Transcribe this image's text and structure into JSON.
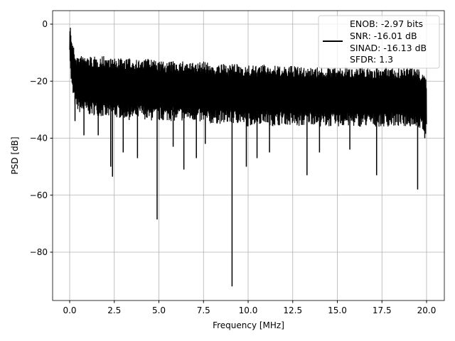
{
  "chart_data": {
    "type": "line",
    "xlabel": "Frequency [MHz]",
    "ylabel": "PSD [dB]",
    "xlim": [
      -1,
      21
    ],
    "ylim": [
      -97,
      4.7
    ],
    "grid": true,
    "xticks": [
      0,
      2.5,
      5,
      7.5,
      10,
      12.5,
      15,
      17.5,
      20
    ],
    "xtick_labels": [
      "0.0",
      "2.5",
      "5.0",
      "7.5",
      "10.0",
      "12.5",
      "15.0",
      "17.5",
      "20.0"
    ],
    "yticks": [
      0,
      -20,
      -40,
      -60,
      -80
    ],
    "ytick_labels": [
      "0",
      "−20",
      "−40",
      "−60",
      "−80"
    ],
    "legend": {
      "placement": "top-right",
      "entries": [
        "ENOB: -2.97 bits",
        "SNR: -16.01 dB",
        "SINAD: -16.13 dB",
        "SFDR: 1.3"
      ]
    },
    "series": {
      "name": "PSD",
      "color": "#000000",
      "x": [
        0,
        0.05,
        0.15,
        0.3,
        0.5,
        1,
        1.5,
        2,
        2.5,
        3,
        3.5,
        4,
        4.5,
        5,
        5.5,
        6,
        6.5,
        7,
        7.5,
        8,
        8.5,
        9,
        9.5,
        10,
        10.5,
        11,
        11.5,
        12,
        12.5,
        13,
        13.5,
        14,
        14.5,
        15,
        15.5,
        16,
        16.5,
        17,
        17.5,
        18,
        18.5,
        19,
        19.5,
        20
      ],
      "upper": [
        0,
        -3,
        -8,
        -12,
        -13,
        -13,
        -13.5,
        -13,
        -14,
        -14,
        -14,
        -14.5,
        -14,
        -15,
        -15,
        -15,
        -15,
        -15.5,
        -15,
        -16,
        -16,
        -16,
        -16,
        -16.5,
        -16.5,
        -16,
        -16.5,
        -17,
        -16.5,
        -17,
        -17,
        -17,
        -17,
        -17,
        -17,
        -17,
        -17,
        -17.5,
        -17,
        -17,
        -17.5,
        -17,
        -17,
        -21
      ],
      "lower": [
        -8,
        -18,
        -24,
        -28,
        -30,
        -31,
        -31,
        -32,
        -32,
        -32,
        -33,
        -32,
        -33,
        -33,
        -33,
        -33,
        -33,
        -33,
        -34,
        -34,
        -34,
        -34,
        -34,
        -35,
        -34,
        -34,
        -35,
        -34,
        -35,
        -35,
        -34,
        -35,
        -35,
        -35,
        -35,
        -35,
        -35,
        -35,
        -35,
        -35,
        -35,
        -35,
        -35,
        -39
      ]
    },
    "dips": [
      [
        0.3,
        -34
      ],
      [
        0.8,
        -39
      ],
      [
        1.6,
        -39
      ],
      [
        2.3,
        -50
      ],
      [
        2.4,
        -53.5
      ],
      [
        3.0,
        -45
      ],
      [
        3.8,
        -47
      ],
      [
        4.9,
        -68.5
      ],
      [
        5.8,
        -43
      ],
      [
        6.4,
        -51
      ],
      [
        7.1,
        -47
      ],
      [
        7.6,
        -42
      ],
      [
        9.1,
        -92
      ],
      [
        9.9,
        -50
      ],
      [
        10.5,
        -47
      ],
      [
        11.2,
        -45
      ],
      [
        13.3,
        -53
      ],
      [
        14.0,
        -45
      ],
      [
        15.7,
        -44
      ],
      [
        17.2,
        -53
      ],
      [
        19.5,
        -58
      ],
      [
        19.9,
        -40
      ]
    ]
  }
}
